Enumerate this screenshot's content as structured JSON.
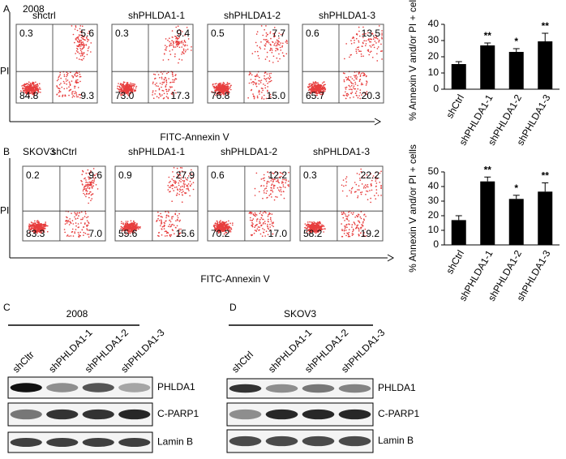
{
  "panels": [
    {
      "label": "A",
      "cell_line": "2008",
      "y_axis": "PI",
      "x_axis": "FITC-Annexin V",
      "plots": [
        {
          "title": "shctrl",
          "ul": "0.3",
          "ur": "5.6",
          "ll": "84.8",
          "lr": "9.3"
        },
        {
          "title": "shPHLDA1-1",
          "ul": "0.3",
          "ur": "9.4",
          "ll": "73.0",
          "lr": "17.3"
        },
        {
          "title": "shPHLDA1-2",
          "ul": "0.5",
          "ur": "7.7",
          "ll": "76.8",
          "lr": "15.0"
        },
        {
          "title": "shPHLDA1-3",
          "ul": "0.6",
          "ur": "13.5",
          "ll": "65.7",
          "lr": "20.3"
        }
      ]
    },
    {
      "label": "B",
      "cell_line": "SKOV3",
      "y_axis": "PI",
      "x_axis": "FITC-Annexin V",
      "plots": [
        {
          "title": "shCtrl",
          "ul": "0.2",
          "ur": "9.6",
          "ll": "83.3",
          "lr": "7.0"
        },
        {
          "title": "shPHLDA1-1",
          "ul": "0.9",
          "ur": "27.9",
          "ll": "55.6",
          "lr": "15.6"
        },
        {
          "title": "shPHLDA1-2",
          "ul": "0.6",
          "ur": "12.2",
          "ll": "70.2",
          "lr": "17.0"
        },
        {
          "title": "shPHLDA1-3",
          "ul": "0.3",
          "ur": "22.2",
          "ll": "58.2",
          "lr": "19.2"
        }
      ]
    }
  ],
  "chart_data": [
    {
      "type": "bar",
      "y_label": "% Annexin V and/or PI + cells",
      "categories": [
        "shCtrl",
        "shPHLDA1-1",
        "shPHLDA1-2",
        "shPHLDA1-3"
      ],
      "values": [
        15.5,
        27,
        23,
        29.5
      ],
      "errors": [
        1.5,
        1.5,
        2,
        5
      ],
      "annotations": [
        null,
        "**",
        "*",
        "**"
      ],
      "ylim": [
        0,
        40
      ],
      "yticks": [
        0,
        10,
        20,
        30,
        40
      ],
      "color": "#000000"
    },
    {
      "type": "bar",
      "y_label": "% Annexin V and/or PI + cells",
      "categories": [
        "shCtrl",
        "shPHLDA1-1",
        "shPHLDA1-2",
        "shPHLDA1-3"
      ],
      "values": [
        17,
        43.5,
        31.5,
        36.5
      ],
      "errors": [
        3,
        3,
        2.5,
        6
      ],
      "annotations": [
        null,
        "**",
        "*",
        "**"
      ],
      "ylim": [
        0,
        50
      ],
      "yticks": [
        0,
        10,
        20,
        30,
        40,
        50
      ],
      "color": "#000000"
    }
  ],
  "blots": [
    {
      "label": "C",
      "cell_line": "2008",
      "lanes": [
        "shCltr",
        "shPHLDA1-1",
        "shPHLDA1-2",
        "shPHLDA1-3"
      ],
      "bands": [
        "PHLDA1",
        "C-PARP1",
        "Lamin B"
      ]
    },
    {
      "label": "D",
      "cell_line": "SKOV3",
      "lanes": [
        "shCtrl",
        "shPHLDA1-1",
        "shPHLDA1-2",
        "shPHLDA1-3"
      ],
      "bands": [
        "PHLDA1",
        "C-PARP1",
        "Lamin B"
      ]
    }
  ]
}
